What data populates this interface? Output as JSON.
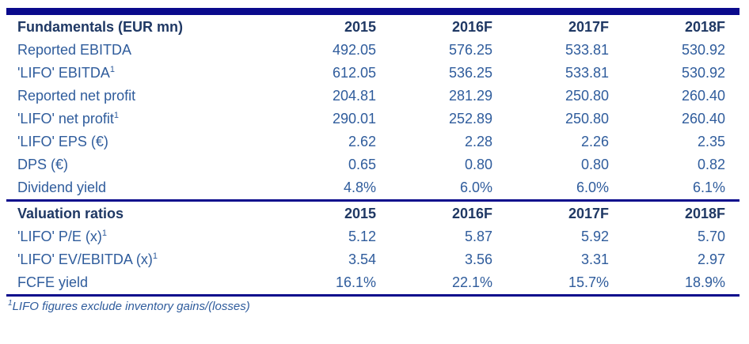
{
  "colors": {
    "accent_navy": "#0A0A8C",
    "header_text": "#1F3864",
    "body_text": "#2F5C9C",
    "background": "#FFFFFF"
  },
  "fundamentals": {
    "header": {
      "label": "Fundamentals (EUR mn)",
      "cols": [
        "2015",
        "2016F",
        "2017F",
        "2018F"
      ]
    },
    "rows": [
      {
        "label": "Reported EBITDA",
        "sup": "",
        "values": [
          "492.05",
          "576.25",
          "533.81",
          "530.92"
        ]
      },
      {
        "label": "'LIFO' EBITDA",
        "sup": "1",
        "values": [
          "612.05",
          "536.25",
          "533.81",
          "530.92"
        ]
      },
      {
        "label": "Reported net profit",
        "sup": "",
        "values": [
          "204.81",
          "281.29",
          "250.80",
          "260.40"
        ]
      },
      {
        "label": "'LIFO' net profit",
        "sup": "1",
        "values": [
          "290.01",
          "252.89",
          "250.80",
          "260.40"
        ]
      },
      {
        "label": "'LIFO' EPS (€)",
        "sup": "",
        "values": [
          "2.62",
          "2.28",
          "2.26",
          "2.35"
        ]
      },
      {
        "label": "DPS (€)",
        "sup": "",
        "values": [
          "0.65",
          "0.80",
          "0.80",
          "0.82"
        ]
      },
      {
        "label": "Dividend yield",
        "sup": "",
        "values": [
          "4.8%",
          "6.0%",
          "6.0%",
          "6.1%"
        ]
      }
    ]
  },
  "valuation": {
    "header": {
      "label": "Valuation ratios",
      "cols": [
        "2015",
        "2016F",
        "2017F",
        "2018F"
      ]
    },
    "rows": [
      {
        "label": "'LIFO' P/E (x)",
        "sup": "1",
        "values": [
          "5.12",
          "5.87",
          "5.92",
          "5.70"
        ]
      },
      {
        "label": "'LIFO' EV/EBITDA (x)",
        "sup": "1",
        "values": [
          "3.54",
          "3.56",
          "3.31",
          "2.97"
        ]
      },
      {
        "label": "FCFE yield",
        "sup": "",
        "values": [
          "16.1%",
          "22.1%",
          "15.7%",
          "18.9%"
        ]
      }
    ]
  },
  "footnote": {
    "sup": "1",
    "text": "LIFO figures exclude inventory gains/(losses)"
  }
}
